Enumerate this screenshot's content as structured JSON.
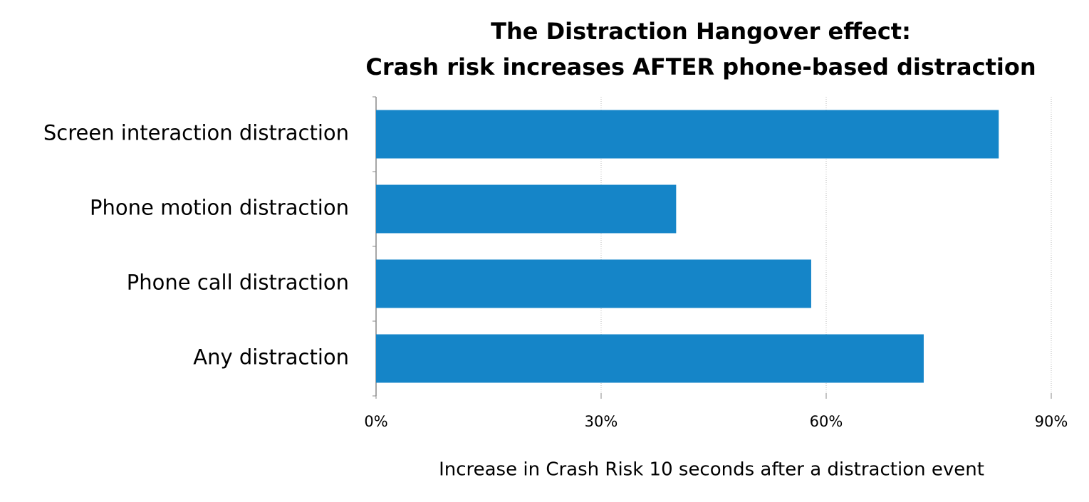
{
  "chart_data": {
    "type": "bar",
    "orientation": "horizontal",
    "title_lines": [
      "The Distraction Hangover effect:",
      "Crash risk increases AFTER phone-based distraction"
    ],
    "x_label": "Increase in Crash Risk 10 seconds after a distraction event",
    "categories": [
      "Screen interaction distraction",
      "Phone motion distraction",
      "Phone call distraction",
      "Any distraction"
    ],
    "values": [
      83,
      40,
      58,
      73
    ],
    "color": "#1585c8",
    "xlim": [
      0,
      90
    ],
    "xticks": [
      {
        "value": 0,
        "label": "0%"
      },
      {
        "value": 30,
        "label": "30%"
      },
      {
        "value": 60,
        "label": "60%"
      },
      {
        "value": 90,
        "label": "90%"
      }
    ],
    "grid": true
  }
}
